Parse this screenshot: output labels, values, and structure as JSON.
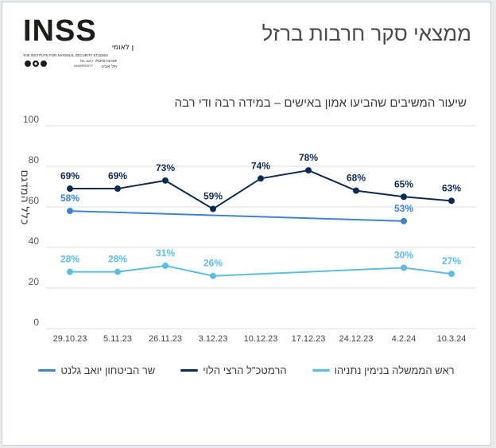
{
  "header": {
    "headline": "ממצאי סקר חרבות ברזל",
    "logo": {
      "wordmark": "INSS",
      "name_he": "המכון למחקרי ביטחון לאומי",
      "name_en": "THE INSTITUTE FOR NATIONAL SECURITY STUDIES",
      "university_he": "אוניברסיטת תל אביב",
      "university_en": "TEL AVIV UNIVERSITY"
    }
  },
  "chart_data": {
    "type": "line",
    "title": "שיעור המשיבים שהביעו אמון באישים – במידה רבה ודי רבה",
    "ylabel": "כלל המדגם",
    "xlabel": "",
    "ylim": [
      0,
      100
    ],
    "yticks": [
      0,
      20,
      40,
      60,
      80,
      100
    ],
    "grid": true,
    "legend_position": "bottom",
    "categories": [
      "29.10.23",
      "5.11.23",
      "26.11.23",
      "3.12.23",
      "10.12.23",
      "17.12.23",
      "24.12.23",
      "4.2.24",
      "10.3.24"
    ],
    "series": [
      {
        "name": "הרמטכ\"ל הרצי הלוי",
        "color": "#0d2a52",
        "values": [
          69,
          69,
          73,
          59,
          74,
          78,
          68,
          65,
          63
        ],
        "labels": [
          "69%",
          "69%",
          "73%",
          "59%",
          "74%",
          "78%",
          "68%",
          "65%",
          "63%"
        ]
      },
      {
        "name": "שר הביטחון יואב גלנט",
        "color": "#3e82d0",
        "values": [
          58,
          null,
          null,
          null,
          null,
          null,
          null,
          53,
          null
        ],
        "labels": [
          "58%",
          "",
          "",
          "",
          "",
          "",
          "",
          "53%",
          ""
        ]
      },
      {
        "name": "ראש הממשלה בנימין נתניהו",
        "color": "#5dbde0",
        "values": [
          28,
          28,
          31,
          26,
          null,
          null,
          null,
          30,
          27
        ],
        "labels": [
          "28%",
          "28%",
          "31%",
          "26%",
          "",
          "",
          "",
          "30%",
          "27%"
        ]
      }
    ],
    "legend_order": [
      1,
      0,
      2
    ]
  }
}
